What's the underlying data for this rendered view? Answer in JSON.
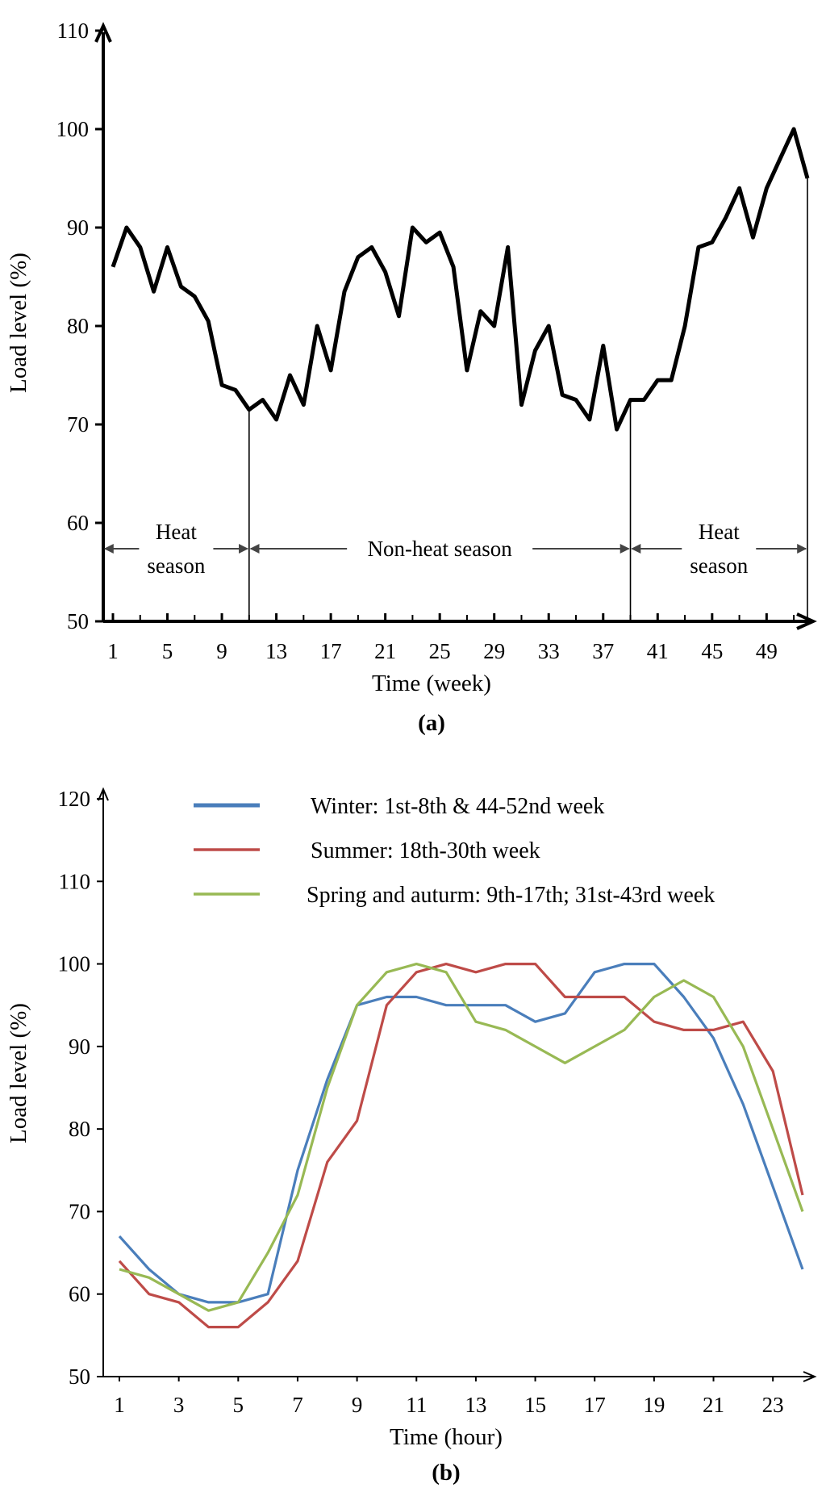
{
  "chart_data": [
    {
      "type": "line",
      "caption": "(a)",
      "xlabel": "Time (week)",
      "ylabel": "Load level (%)",
      "ylim": [
        50,
        110
      ],
      "xlim": [
        1,
        52
      ],
      "yticks": [
        "50",
        "60",
        "70",
        "80",
        "90",
        "100",
        "110"
      ],
      "xticks": [
        "1",
        "5",
        "9",
        "13",
        "17",
        "21",
        "25",
        "29",
        "33",
        "37",
        "41",
        "45",
        "49"
      ],
      "series": [
        {
          "color": "#000000",
          "x": [
            1,
            2,
            3,
            4,
            5,
            6,
            7,
            8,
            9,
            10,
            11,
            12,
            13,
            14,
            15,
            16,
            17,
            18,
            19,
            20,
            21,
            22,
            23,
            24,
            25,
            26,
            27,
            28,
            29,
            30,
            31,
            32,
            33,
            34,
            35,
            36,
            37,
            38,
            39,
            40,
            41,
            42,
            43,
            44,
            45,
            46,
            47,
            48,
            49,
            50,
            51,
            52
          ],
          "values": [
            86,
            90,
            88,
            83.5,
            88,
            84,
            83,
            80.5,
            74,
            73.5,
            71.5,
            72.5,
            70.5,
            75,
            72,
            80,
            75.5,
            83.5,
            87,
            88,
            85.5,
            81,
            90,
            88.5,
            89.5,
            86,
            75.5,
            81.5,
            80,
            88,
            72,
            77.5,
            80,
            73,
            72.5,
            70.5,
            78,
            69.5,
            72.5,
            72.5,
            74.5,
            74.5,
            80,
            88,
            88.5,
            91,
            94,
            89,
            94,
            97,
            100,
            95
          ]
        }
      ],
      "annotations": [
        {
          "line1": "Heat",
          "line2": "season",
          "from": 1,
          "to": 11
        },
        {
          "line1": "Non-heat season",
          "from": 11,
          "to": 39
        },
        {
          "line1": "Heat",
          "line2": "season",
          "from": 39,
          "to": 52
        }
      ],
      "dividers": [
        11,
        39,
        52
      ]
    },
    {
      "type": "line",
      "caption": "(b)",
      "xlabel": "Time (hour)",
      "ylabel": "Load level (%)",
      "ylim": [
        50,
        120
      ],
      "xlim": [
        1,
        24
      ],
      "yticks": [
        "50",
        "60",
        "70",
        "80",
        "90",
        "100",
        "110",
        "120"
      ],
      "xticks": [
        "1",
        "3",
        "5",
        "7",
        "9",
        "11",
        "13",
        "15",
        "17",
        "19",
        "21",
        "23"
      ],
      "legend_position": "top",
      "x": [
        1,
        2,
        3,
        4,
        5,
        6,
        7,
        8,
        9,
        10,
        11,
        12,
        13,
        14,
        15,
        16,
        17,
        18,
        19,
        20,
        21,
        22,
        23,
        24
      ],
      "series": [
        {
          "name": "Winter: 1st-8th & 44-52nd week",
          "color": "#4a7ebb",
          "values": [
            67,
            63,
            60,
            59,
            59,
            60,
            75,
            86,
            95,
            96,
            96,
            95,
            95,
            95,
            93,
            94,
            99,
            100,
            100,
            96,
            91,
            83,
            73,
            63
          ]
        },
        {
          "name": "Summer: 18th-30th week",
          "color": "#be4b48",
          "values": [
            64,
            60,
            59,
            56,
            56,
            59,
            64,
            76,
            81,
            95,
            99,
            100,
            99,
            100,
            100,
            96,
            96,
            96,
            93,
            92,
            92,
            93,
            87,
            72
          ]
        },
        {
          "name": "Spring and auturm: 9th-17th; 31st-43rd week",
          "color": "#98b954",
          "values": [
            63,
            62,
            60,
            58,
            59,
            65,
            72,
            85,
            95,
            99,
            100,
            99,
            93,
            92,
            90,
            88,
            90,
            92,
            96,
            98,
            96,
            90,
            80,
            70
          ]
        }
      ]
    }
  ]
}
